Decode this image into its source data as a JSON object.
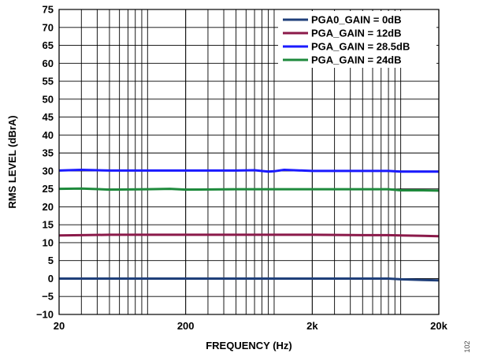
{
  "figure_id": "102",
  "chart_data": {
    "type": "line",
    "title": "",
    "xlabel": "FREQUENCY (Hz)",
    "ylabel": "RMS LEVEL (dBrA)",
    "x_scale": "log",
    "xlim": [
      20,
      20000
    ],
    "ylim": [
      -10,
      75
    ],
    "x_ticks": [
      {
        "value": 20,
        "label": "20"
      },
      {
        "value": 200,
        "label": "200"
      },
      {
        "value": 2000,
        "label": "2k"
      },
      {
        "value": 20000,
        "label": "20k"
      }
    ],
    "y_ticks": [
      {
        "value": 75,
        "label": "75"
      },
      {
        "value": 70,
        "label": "70"
      },
      {
        "value": 65,
        "label": "65"
      },
      {
        "value": 60,
        "label": "60"
      },
      {
        "value": 55,
        "label": "55"
      },
      {
        "value": 50,
        "label": "50"
      },
      {
        "value": 45,
        "label": "45"
      },
      {
        "value": 40,
        "label": "40"
      },
      {
        "value": 35,
        "label": "35"
      },
      {
        "value": 30,
        "label": "30"
      },
      {
        "value": 25,
        "label": "25"
      },
      {
        "value": 20,
        "label": "20"
      },
      {
        "value": 15,
        "label": "15"
      },
      {
        "value": 10,
        "label": "10"
      },
      {
        "value": 5,
        "label": "5"
      },
      {
        "value": 0,
        "label": "0"
      },
      {
        "value": -5,
        "label": "−5"
      },
      {
        "value": -10,
        "label": "−10"
      }
    ],
    "grid": true,
    "legend_position": "top-right",
    "series": [
      {
        "name": "PGA0_GAIN = 0dB",
        "color": "#1f3f7a",
        "x": [
          20,
          50,
          100,
          200,
          500,
          1000,
          2000,
          5000,
          8000,
          10000,
          15000,
          20000
        ],
        "y": [
          0,
          0,
          0,
          0,
          0,
          0,
          0,
          0,
          0,
          -0.2,
          -0.4,
          -0.5
        ]
      },
      {
        "name": "PGA_GAIN = 12dB",
        "color": "#8b1a4a",
        "x": [
          20,
          30,
          50,
          100,
          200,
          500,
          1000,
          2000,
          5000,
          8000,
          10000,
          15000,
          20000
        ],
        "y": [
          12,
          12.1,
          12.2,
          12.2,
          12.2,
          12.2,
          12.2,
          12.2,
          12.1,
          12.1,
          12.0,
          11.9,
          11.8
        ]
      },
      {
        "name": "PGA_GAIN = 28.5dB",
        "color": "#1a1aff",
        "x": [
          20,
          30,
          50,
          100,
          200,
          500,
          700,
          900,
          1000,
          1200,
          2000,
          5000,
          8000,
          10000,
          15000,
          20000
        ],
        "y": [
          30.1,
          30.3,
          30.1,
          30.1,
          30.1,
          30.1,
          30.2,
          29.8,
          29.9,
          30.3,
          30.0,
          30.0,
          30.0,
          29.8,
          29.8,
          29.8
        ]
      },
      {
        "name": "PGA_GAIN = 24dB",
        "color": "#1e8a3c",
        "x": [
          20,
          30,
          50,
          100,
          150,
          200,
          500,
          1000,
          2000,
          5000,
          8000,
          10000,
          15000,
          20000
        ],
        "y": [
          25,
          25.1,
          24.8,
          24.9,
          25.0,
          24.8,
          24.9,
          24.9,
          24.9,
          24.9,
          24.9,
          24.6,
          24.6,
          24.5
        ]
      }
    ]
  }
}
